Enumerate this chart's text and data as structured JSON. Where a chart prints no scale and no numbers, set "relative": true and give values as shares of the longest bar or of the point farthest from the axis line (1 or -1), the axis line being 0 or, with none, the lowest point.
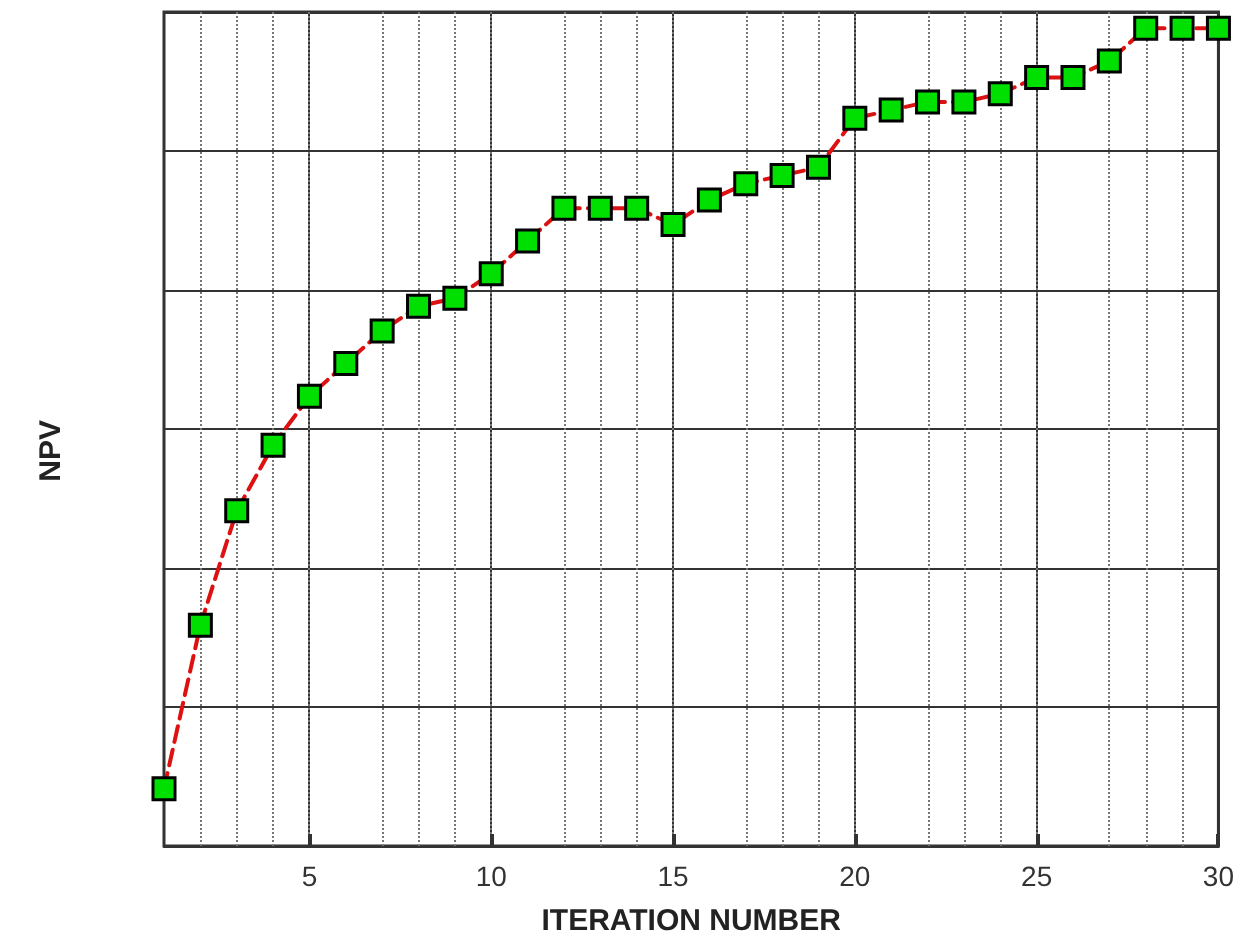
{
  "chart_data": {
    "type": "line",
    "xlabel": "ITERATION NUMBER",
    "ylabel": "NPV",
    "relative": true,
    "x": [
      1,
      2,
      3,
      4,
      5,
      6,
      7,
      8,
      9,
      10,
      11,
      12,
      13,
      14,
      15,
      16,
      17,
      18,
      19,
      20,
      21,
      22,
      23,
      24,
      25,
      26,
      27,
      28,
      29,
      30
    ],
    "series": [
      {
        "color": "#dd1111",
        "values": [
          0.07,
          0.27,
          0.41,
          0.49,
          0.55,
          0.59,
          0.63,
          0.66,
          0.67,
          0.7,
          0.74,
          0.78,
          0.78,
          0.78,
          0.76,
          0.79,
          0.81,
          0.82,
          0.83,
          0.89,
          0.9,
          0.91,
          0.91,
          0.92,
          0.94,
          0.94,
          0.96,
          1,
          1,
          1
        ]
      }
    ],
    "xlim": [
      1,
      30
    ],
    "xticks": [
      5,
      10,
      15,
      20,
      25,
      30
    ],
    "grid": true,
    "marker": "square",
    "line_style": "dashed"
  }
}
